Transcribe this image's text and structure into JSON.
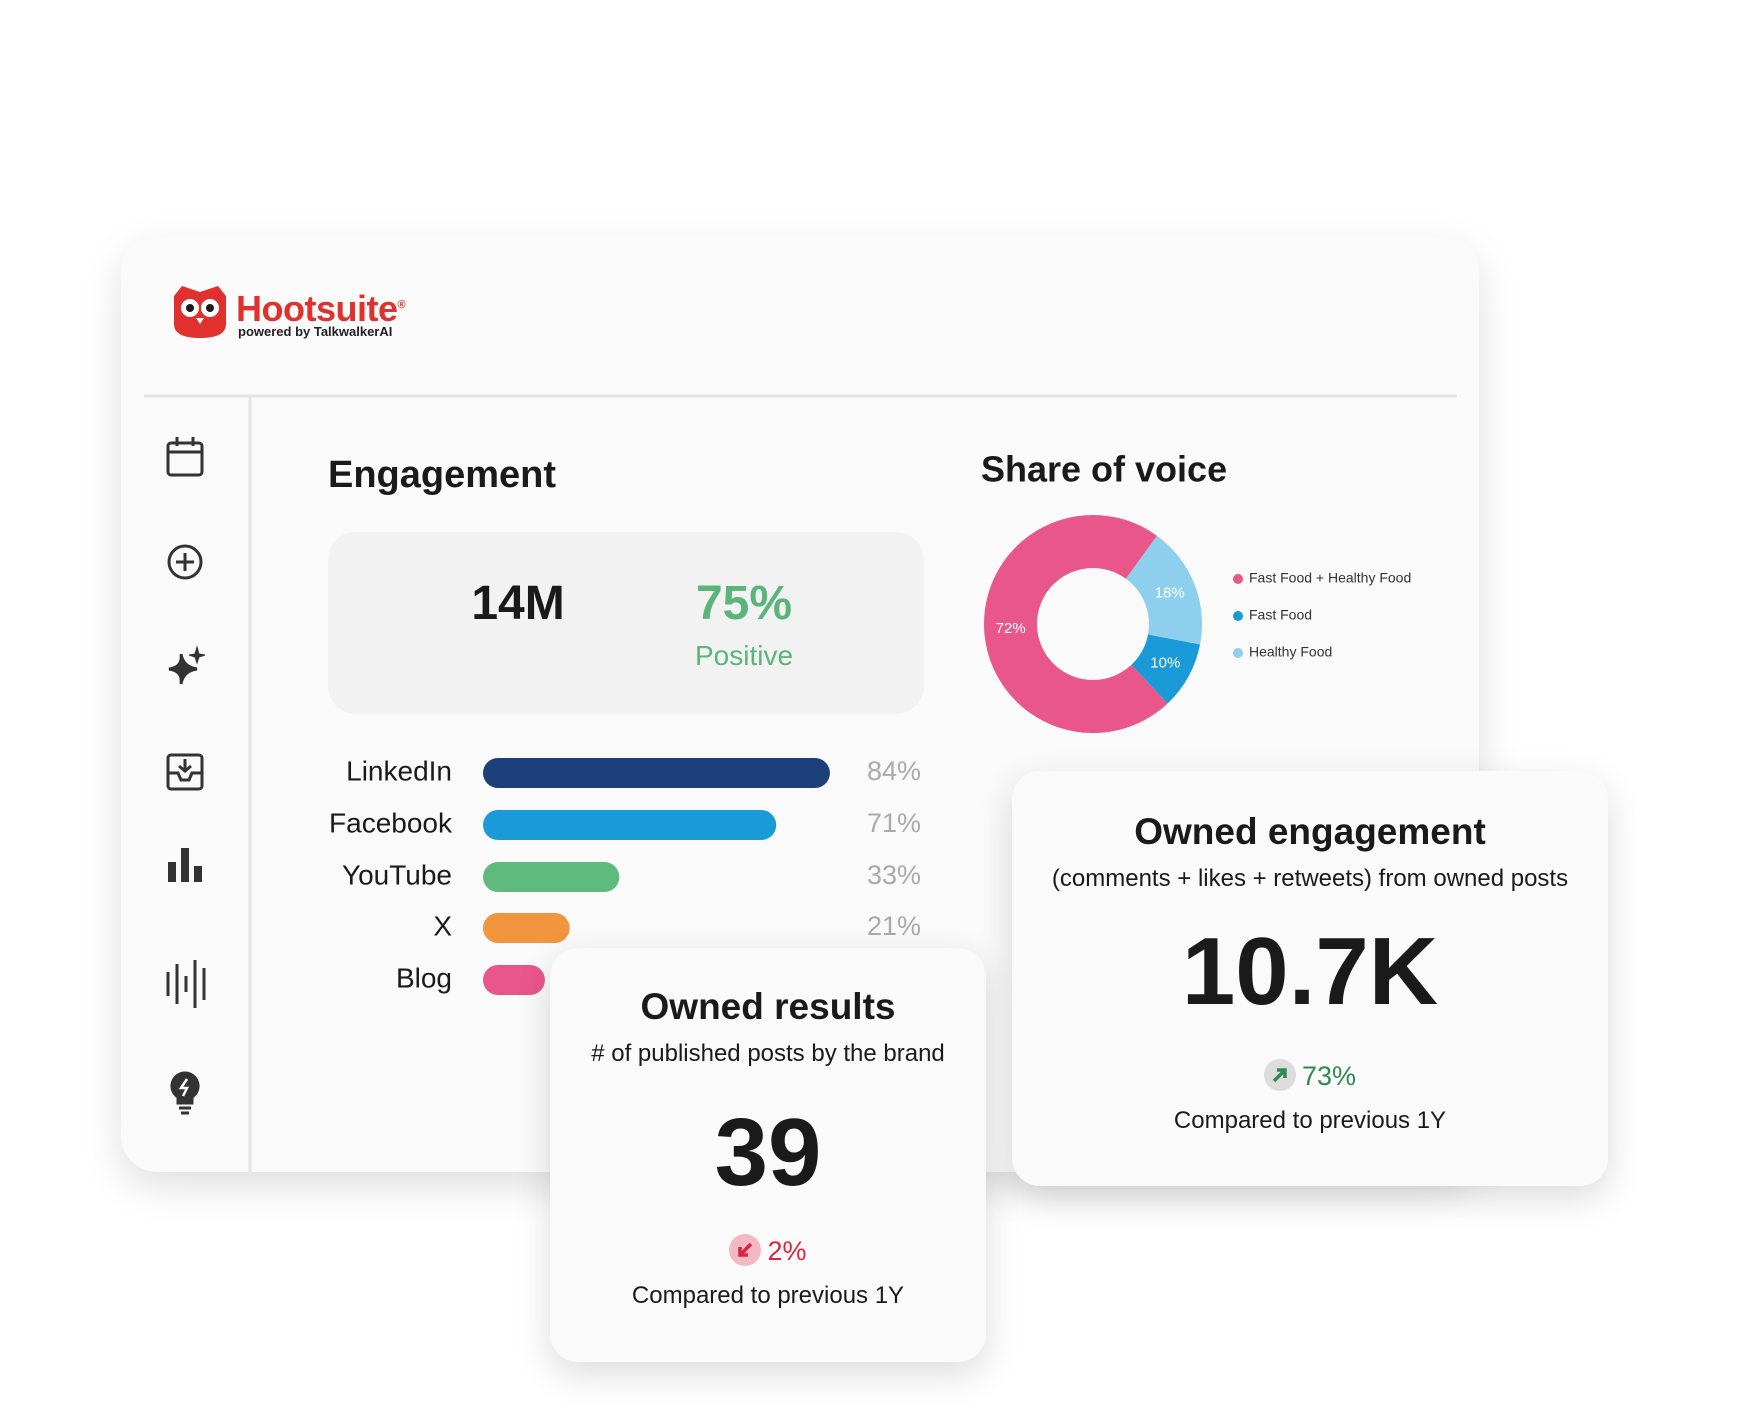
{
  "logo": {
    "name": "Hootsuite",
    "registered": "®",
    "tagline": "powered by TalkwalkerAI"
  },
  "engagement": {
    "title": "Engagement",
    "total": "14M",
    "sentiment_value": "75%",
    "sentiment_label": "Positive"
  },
  "chart_data": [
    {
      "type": "bar",
      "orientation": "horizontal",
      "categories": [
        "LinkedIn",
        "Facebook",
        "YouTube",
        "X",
        "Blog"
      ],
      "values": [
        84,
        71,
        33,
        21,
        15
      ],
      "value_labels": [
        "84%",
        "71%",
        "33%",
        "21%",
        null
      ],
      "colors": [
        "#1d3f7a",
        "#1a9bd7",
        "#5fba7d",
        "#f2953f",
        "#e9578a"
      ],
      "xlim": [
        0,
        100
      ]
    },
    {
      "type": "pie",
      "title": "Share of voice",
      "donut": true,
      "legend": "right",
      "categories": [
        "Fast Food + Healthy Food",
        "Fast Food",
        "Healthy Food"
      ],
      "values": [
        72,
        10,
        18
      ],
      "value_labels": [
        "72%",
        "10%",
        "18%"
      ],
      "colors": [
        "#e9578a",
        "#1a9bd7",
        "#8ecfee"
      ]
    }
  ],
  "owned_results": {
    "title": "Owned results",
    "subtitle": "# of published posts by the brand",
    "value": "39",
    "change": "2%",
    "comparison": "Compared to previous 1Y"
  },
  "owned_engagement": {
    "title": "Owned engagement",
    "subtitle": "(comments + likes + retweets) from owned posts",
    "value": "10.7K",
    "change": "73%",
    "comparison": "Compared to previous 1Y"
  }
}
